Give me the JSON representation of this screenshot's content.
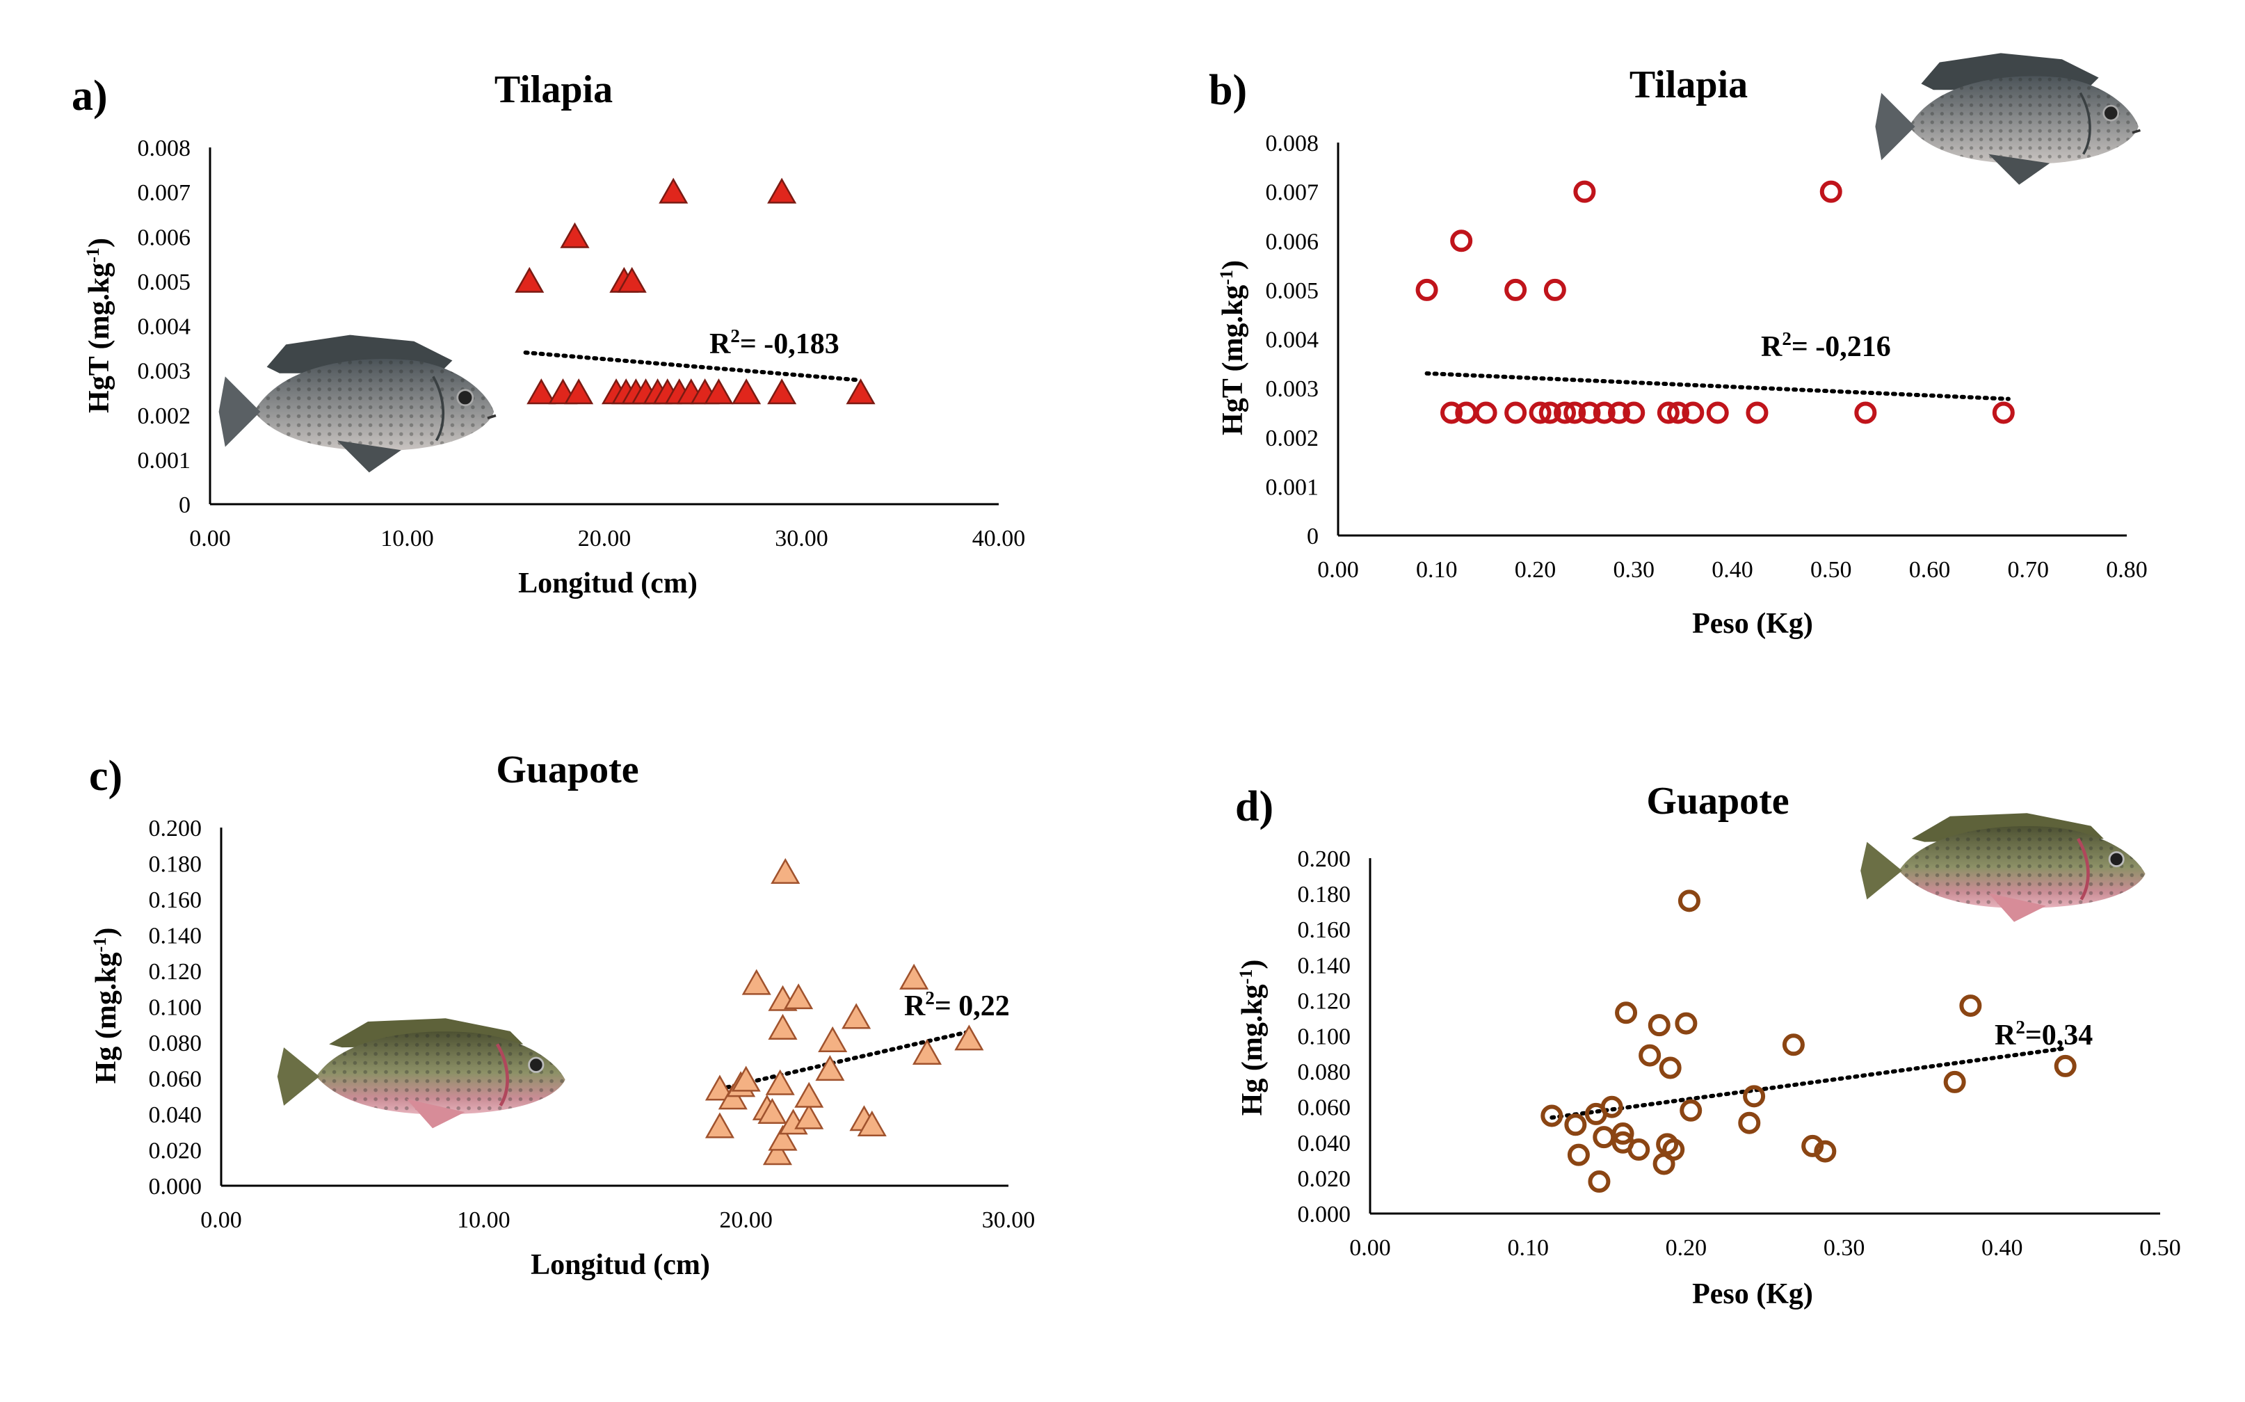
{
  "figure": {
    "images": {
      "tilapia_fish": "tilapia-fish-photo",
      "guapote_fish": "guapote-fish-photo"
    }
  },
  "chart_data": [
    {
      "id": "a",
      "type": "scatter",
      "panel_label": "a)",
      "title": "Tilapia",
      "xlabel": "Longitud (cm)",
      "ylabel_main": "HgT (mg.kg",
      "ylabel_sup": "-1",
      "ylabel_end": ")",
      "xlim": [
        0,
        40
      ],
      "ylim": [
        0,
        0.008
      ],
      "xticks": [
        "0.00",
        "10.00",
        "20.00",
        "30.00",
        "40.00"
      ],
      "xtick_values": [
        0,
        10,
        20,
        30,
        40
      ],
      "yticks": [
        "0",
        "0.001",
        "0.002",
        "0.003",
        "0.004",
        "0.005",
        "0.006",
        "0.007",
        "0.008"
      ],
      "ytick_values": [
        0,
        0.001,
        0.002,
        0.003,
        0.004,
        0.005,
        0.006,
        0.007,
        0.008
      ],
      "marker": "triangle",
      "marker_fill": "#e0261c",
      "marker_stroke": "#7a1a12",
      "annotation_main": "R",
      "annotation_sup": "2",
      "annotation_rest": "= -0,183",
      "trendline": {
        "x": [
          16.0,
          33.0
        ],
        "y": [
          0.0034,
          0.00278
        ]
      },
      "points": [
        {
          "x": 16.2,
          "y": 0.005
        },
        {
          "x": 18.5,
          "y": 0.006
        },
        {
          "x": 21.0,
          "y": 0.005
        },
        {
          "x": 21.4,
          "y": 0.005
        },
        {
          "x": 23.5,
          "y": 0.007
        },
        {
          "x": 29.0,
          "y": 0.007
        },
        {
          "x": 16.8,
          "y": 0.0025
        },
        {
          "x": 17.9,
          "y": 0.0025
        },
        {
          "x": 18.7,
          "y": 0.0025
        },
        {
          "x": 20.6,
          "y": 0.0025
        },
        {
          "x": 21.1,
          "y": 0.0025
        },
        {
          "x": 21.6,
          "y": 0.0025
        },
        {
          "x": 22.1,
          "y": 0.0025
        },
        {
          "x": 22.7,
          "y": 0.0025
        },
        {
          "x": 23.2,
          "y": 0.0025
        },
        {
          "x": 23.8,
          "y": 0.0025
        },
        {
          "x": 24.4,
          "y": 0.0025
        },
        {
          "x": 25.1,
          "y": 0.0025
        },
        {
          "x": 25.8,
          "y": 0.0025
        },
        {
          "x": 27.2,
          "y": 0.0025
        },
        {
          "x": 29.0,
          "y": 0.0025
        },
        {
          "x": 33.0,
          "y": 0.0025
        }
      ]
    },
    {
      "id": "b",
      "type": "scatter",
      "panel_label": "b)",
      "title": "Tilapia",
      "xlabel": "Peso (Kg)",
      "ylabel_main": "HgT (mg.kg",
      "ylabel_sup": "-1",
      "ylabel_end": ")",
      "xlim": [
        0,
        0.8
      ],
      "ylim": [
        0,
        0.008
      ],
      "xticks": [
        "0.00",
        "0.10",
        "0.20",
        "0.30",
        "0.40",
        "0.50",
        "0.60",
        "0.70",
        "0.80"
      ],
      "xtick_values": [
        0,
        0.1,
        0.2,
        0.3,
        0.4,
        0.5,
        0.6,
        0.7,
        0.8
      ],
      "yticks": [
        "0",
        "0.001",
        "0.002",
        "0.003",
        "0.004",
        "0.005",
        "0.006",
        "0.007",
        "0.008"
      ],
      "ytick_values": [
        0,
        0.001,
        0.002,
        0.003,
        0.004,
        0.005,
        0.006,
        0.007,
        0.008
      ],
      "marker": "circle",
      "marker_fill": "none",
      "marker_stroke": "#c0141b",
      "annotation_main": "R",
      "annotation_sup": "2",
      "annotation_rest": "= -0,216",
      "trendline": {
        "x": [
          0.09,
          0.68
        ],
        "y": [
          0.0033,
          0.00278
        ]
      },
      "points": [
        {
          "x": 0.09,
          "y": 0.005
        },
        {
          "x": 0.125,
          "y": 0.006
        },
        {
          "x": 0.18,
          "y": 0.005
        },
        {
          "x": 0.22,
          "y": 0.005
        },
        {
          "x": 0.25,
          "y": 0.007
        },
        {
          "x": 0.5,
          "y": 0.007
        },
        {
          "x": 0.115,
          "y": 0.0025
        },
        {
          "x": 0.13,
          "y": 0.0025
        },
        {
          "x": 0.15,
          "y": 0.0025
        },
        {
          "x": 0.18,
          "y": 0.0025
        },
        {
          "x": 0.205,
          "y": 0.0025
        },
        {
          "x": 0.215,
          "y": 0.0025
        },
        {
          "x": 0.23,
          "y": 0.0025
        },
        {
          "x": 0.24,
          "y": 0.0025
        },
        {
          "x": 0.255,
          "y": 0.0025
        },
        {
          "x": 0.27,
          "y": 0.0025
        },
        {
          "x": 0.285,
          "y": 0.0025
        },
        {
          "x": 0.3,
          "y": 0.0025
        },
        {
          "x": 0.335,
          "y": 0.0025
        },
        {
          "x": 0.345,
          "y": 0.0025
        },
        {
          "x": 0.36,
          "y": 0.0025
        },
        {
          "x": 0.385,
          "y": 0.0025
        },
        {
          "x": 0.425,
          "y": 0.0025
        },
        {
          "x": 0.535,
          "y": 0.0025
        },
        {
          "x": 0.675,
          "y": 0.0025
        }
      ]
    },
    {
      "id": "c",
      "type": "scatter",
      "panel_label": "c)",
      "title": "Guapote",
      "xlabel": "Longitud (cm)",
      "ylabel_main": "Hg (mg.kg",
      "ylabel_sup": "-1",
      "ylabel_end": ")",
      "xlim": [
        0,
        30
      ],
      "ylim": [
        0,
        0.2
      ],
      "xticks": [
        "0.00",
        "10.00",
        "20.00",
        "30.00"
      ],
      "xtick_values": [
        0,
        10,
        20,
        30
      ],
      "yticks": [
        "0.000",
        "0.020",
        "0.040",
        "0.060",
        "0.080",
        "0.100",
        "0.120",
        "0.140",
        "0.160",
        "0.180",
        "0.200"
      ],
      "ytick_values": [
        0,
        0.02,
        0.04,
        0.06,
        0.08,
        0.1,
        0.12,
        0.14,
        0.16,
        0.18,
        0.2
      ],
      "marker": "triangle",
      "marker_fill": "#f4b183",
      "marker_stroke": "#a0522d",
      "annotation_main": "R",
      "annotation_sup": "2",
      "annotation_rest": "= 0,22",
      "trendline": {
        "x": [
          19.0,
          28.5
        ],
        "y": [
          0.054,
          0.086
        ]
      },
      "points": [
        {
          "x": 19.0,
          "y": 0.054
        },
        {
          "x": 19.0,
          "y": 0.033
        },
        {
          "x": 19.5,
          "y": 0.049
        },
        {
          "x": 19.8,
          "y": 0.056
        },
        {
          "x": 20.0,
          "y": 0.059
        },
        {
          "x": 20.4,
          "y": 0.113
        },
        {
          "x": 20.8,
          "y": 0.043
        },
        {
          "x": 21.0,
          "y": 0.041
        },
        {
          "x": 21.2,
          "y": 0.018
        },
        {
          "x": 21.4,
          "y": 0.026
        },
        {
          "x": 21.3,
          "y": 0.057
        },
        {
          "x": 21.4,
          "y": 0.088
        },
        {
          "x": 21.4,
          "y": 0.104
        },
        {
          "x": 21.5,
          "y": 0.175
        },
        {
          "x": 21.8,
          "y": 0.035
        },
        {
          "x": 22.0,
          "y": 0.105
        },
        {
          "x": 22.4,
          "y": 0.038
        },
        {
          "x": 22.4,
          "y": 0.05
        },
        {
          "x": 23.2,
          "y": 0.065
        },
        {
          "x": 23.3,
          "y": 0.081
        },
        {
          "x": 24.2,
          "y": 0.094
        },
        {
          "x": 24.5,
          "y": 0.037
        },
        {
          "x": 24.8,
          "y": 0.034
        },
        {
          "x": 26.4,
          "y": 0.116
        },
        {
          "x": 26.9,
          "y": 0.074
        },
        {
          "x": 28.5,
          "y": 0.082
        }
      ]
    },
    {
      "id": "d",
      "type": "scatter",
      "panel_label": "d)",
      "title": "Guapote",
      "xlabel": "Peso (Kg)",
      "ylabel_main": "Hg (mg.kg",
      "ylabel_sup": "-1",
      "ylabel_end": ")",
      "xlim": [
        0,
        0.5
      ],
      "ylim": [
        0,
        0.2
      ],
      "xticks": [
        "0.00",
        "0.10",
        "0.20",
        "0.30",
        "0.40",
        "0.50"
      ],
      "xtick_values": [
        0,
        0.1,
        0.2,
        0.3,
        0.4,
        0.5
      ],
      "yticks": [
        "0.000",
        "0.020",
        "0.040",
        "0.060",
        "0.080",
        "0.100",
        "0.120",
        "0.140",
        "0.160",
        "0.180",
        "0.200"
      ],
      "ytick_values": [
        0,
        0.02,
        0.04,
        0.06,
        0.08,
        0.1,
        0.12,
        0.14,
        0.16,
        0.18,
        0.2
      ],
      "marker": "circle",
      "marker_fill": "none",
      "marker_stroke": "#8b4513",
      "annotation_main": "R",
      "annotation_sup": "2",
      "annotation_rest": "=0,34",
      "trendline": {
        "x": [
          0.115,
          0.44
        ],
        "y": [
          0.054,
          0.093
        ]
      },
      "points": [
        {
          "x": 0.115,
          "y": 0.055
        },
        {
          "x": 0.13,
          "y": 0.05
        },
        {
          "x": 0.132,
          "y": 0.033
        },
        {
          "x": 0.143,
          "y": 0.056
        },
        {
          "x": 0.145,
          "y": 0.018
        },
        {
          "x": 0.148,
          "y": 0.043
        },
        {
          "x": 0.153,
          "y": 0.06
        },
        {
          "x": 0.16,
          "y": 0.045
        },
        {
          "x": 0.16,
          "y": 0.04
        },
        {
          "x": 0.162,
          "y": 0.113
        },
        {
          "x": 0.17,
          "y": 0.036
        },
        {
          "x": 0.177,
          "y": 0.089
        },
        {
          "x": 0.183,
          "y": 0.106
        },
        {
          "x": 0.186,
          "y": 0.028
        },
        {
          "x": 0.188,
          "y": 0.039
        },
        {
          "x": 0.19,
          "y": 0.082
        },
        {
          "x": 0.192,
          "y": 0.036
        },
        {
          "x": 0.2,
          "y": 0.107
        },
        {
          "x": 0.202,
          "y": 0.176
        },
        {
          "x": 0.203,
          "y": 0.058
        },
        {
          "x": 0.24,
          "y": 0.051
        },
        {
          "x": 0.243,
          "y": 0.066
        },
        {
          "x": 0.268,
          "y": 0.095
        },
        {
          "x": 0.28,
          "y": 0.038
        },
        {
          "x": 0.288,
          "y": 0.035
        },
        {
          "x": 0.37,
          "y": 0.074
        },
        {
          "x": 0.38,
          "y": 0.117
        },
        {
          "x": 0.44,
          "y": 0.083
        }
      ]
    }
  ]
}
